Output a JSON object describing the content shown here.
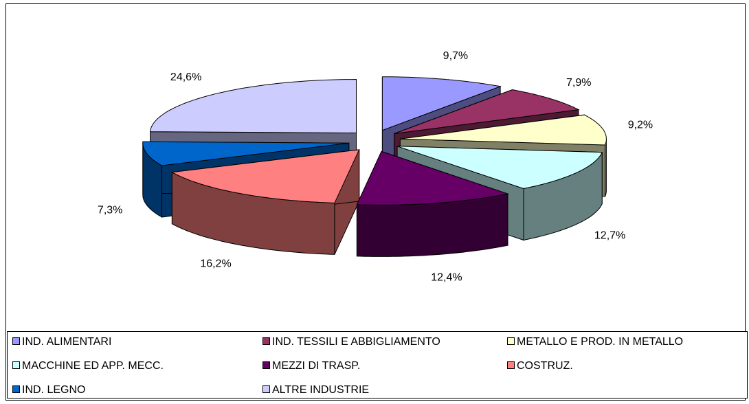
{
  "chart_data": {
    "type": "pie",
    "categories": [
      "IND. ALIMENTARI",
      "IND. TESSILI E ABBIGLIAMENTO",
      "METALLO E PROD. IN METALLO",
      "MACCHINE ED APP. MECC.",
      "MEZZI DI TRASP.",
      "COSTRUZ.",
      "IND. LEGNO",
      "ALTRE INDUSTRIE"
    ],
    "values": [
      9.7,
      7.9,
      9.2,
      12.7,
      12.4,
      16.2,
      7.3,
      24.6
    ],
    "value_labels": [
      "9,7%",
      "7,9%",
      "9,2%",
      "12,7%",
      "12,4%",
      "16,2%",
      "7,3%",
      "24,6%"
    ],
    "colors": [
      "#9999ff",
      "#993366",
      "#ffffcc",
      "#ccffff",
      "#660066",
      "#ff8080",
      "#0066cc",
      "#ccccff"
    ],
    "legend": "bottom"
  }
}
